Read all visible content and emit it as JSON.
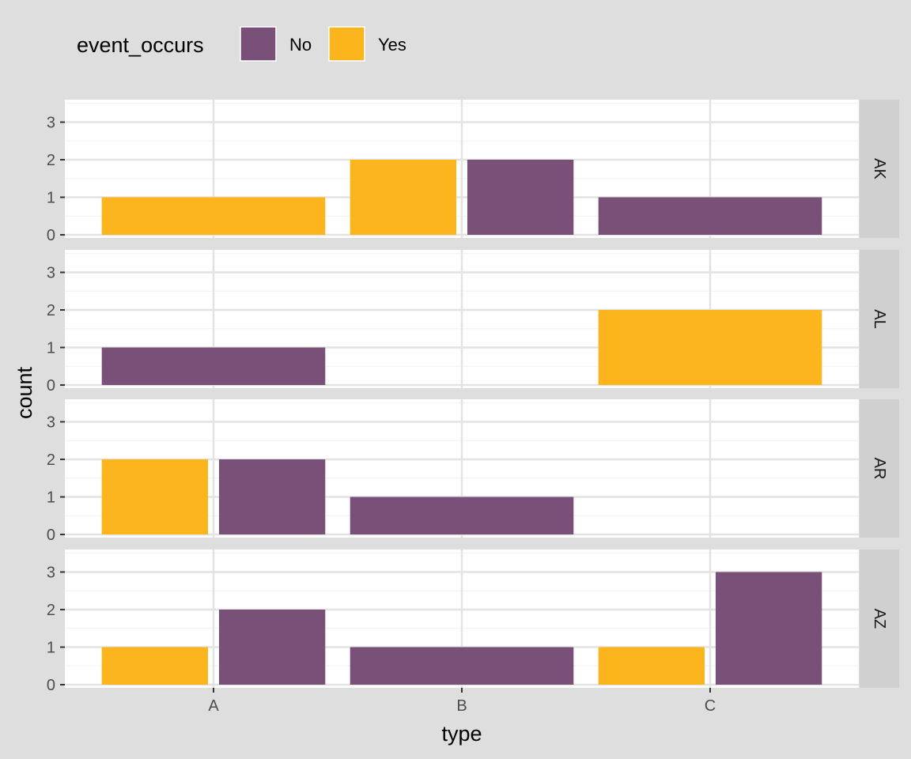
{
  "chart_data": {
    "type": "bar",
    "subtype": "faceted dodged bar chart",
    "xlabel": "type",
    "ylabel": "count",
    "categories": [
      "A",
      "B",
      "C"
    ],
    "y_ticks": [
      0,
      1,
      2,
      3
    ],
    "ylim": [
      0,
      3.6
    ],
    "grid": true,
    "legend": {
      "title": "event_occurs",
      "position": "top-left",
      "items": [
        {
          "label": "No",
          "color": "#785078"
        },
        {
          "label": "Yes",
          "color": "#FDB51E"
        }
      ]
    },
    "facets": [
      {
        "label": "AK",
        "bars": [
          {
            "category": "A",
            "group": "Yes",
            "value": 1
          },
          {
            "category": "B",
            "group": "Yes",
            "value": 2
          },
          {
            "category": "B",
            "group": "No",
            "value": 2
          },
          {
            "category": "C",
            "group": "No",
            "value": 1
          }
        ]
      },
      {
        "label": "AL",
        "bars": [
          {
            "category": "A",
            "group": "No",
            "value": 1
          },
          {
            "category": "C",
            "group": "Yes",
            "value": 2
          }
        ]
      },
      {
        "label": "AR",
        "bars": [
          {
            "category": "A",
            "group": "Yes",
            "value": 2
          },
          {
            "category": "A",
            "group": "No",
            "value": 2
          },
          {
            "category": "B",
            "group": "No",
            "value": 1
          }
        ]
      },
      {
        "label": "AZ",
        "bars": [
          {
            "category": "A",
            "group": "Yes",
            "value": 1
          },
          {
            "category": "A",
            "group": "No",
            "value": 2
          },
          {
            "category": "B",
            "group": "No",
            "value": 1
          },
          {
            "category": "C",
            "group": "Yes",
            "value": 1
          },
          {
            "category": "C",
            "group": "No",
            "value": 3
          }
        ]
      }
    ]
  }
}
